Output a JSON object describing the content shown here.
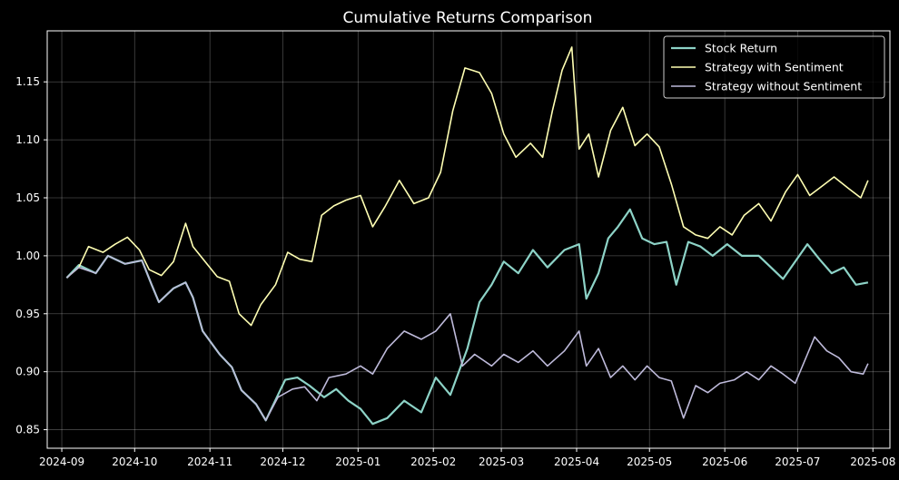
{
  "chart_data": {
    "type": "line",
    "title": "Cumulative Returns Comparison",
    "xlabel": "",
    "ylabel": "",
    "x_ticks": [
      "2024-09",
      "2024-10",
      "2024-11",
      "2024-12",
      "2025-01",
      "2025-02",
      "2025-03",
      "2025-04",
      "2025-05",
      "2025-06",
      "2025-07",
      "2025-08"
    ],
    "y_ticks": [
      "0.85",
      "0.90",
      "0.95",
      "1.00",
      "1.05",
      "1.10",
      "1.15"
    ],
    "xlim": [
      "2024-08-26",
      "2025-08-08"
    ],
    "ylim": [
      0.834,
      1.194
    ],
    "grid": true,
    "legend_position": "top-right",
    "background": "#000000",
    "series": [
      {
        "name": "Stock Return",
        "color": "#8dd3c7",
        "points": [
          [
            "2024-09-03",
            0.981
          ],
          [
            "2024-09-08",
            0.992
          ],
          [
            "2024-09-15",
            0.985
          ],
          [
            "2024-09-20",
            1.0
          ],
          [
            "2024-09-27",
            0.993
          ],
          [
            "2024-10-04",
            0.996
          ],
          [
            "2024-10-08",
            0.975
          ],
          [
            "2024-10-11",
            0.96
          ],
          [
            "2024-10-17",
            0.972
          ],
          [
            "2024-10-22",
            0.977
          ],
          [
            "2024-10-25",
            0.964
          ],
          [
            "2024-10-29",
            0.935
          ],
          [
            "2024-11-05",
            0.915
          ],
          [
            "2024-11-10",
            0.904
          ],
          [
            "2024-11-14",
            0.884
          ],
          [
            "2024-11-20",
            0.872
          ],
          [
            "2024-11-24",
            0.858
          ],
          [
            "2024-11-29",
            0.88
          ],
          [
            "2024-12-02",
            0.893
          ],
          [
            "2024-12-07",
            0.895
          ],
          [
            "2024-12-12",
            0.888
          ],
          [
            "2024-12-18",
            0.878
          ],
          [
            "2024-12-23",
            0.885
          ],
          [
            "2024-12-28",
            0.875
          ],
          [
            "2025-01-02",
            0.868
          ],
          [
            "2025-01-07",
            0.855
          ],
          [
            "2025-01-13",
            0.86
          ],
          [
            "2025-01-20",
            0.875
          ],
          [
            "2025-01-27",
            0.865
          ],
          [
            "2025-02-02",
            0.895
          ],
          [
            "2025-02-08",
            0.88
          ],
          [
            "2025-02-15",
            0.92
          ],
          [
            "2025-02-20",
            0.96
          ],
          [
            "2025-02-25",
            0.975
          ],
          [
            "2025-03-02",
            0.995
          ],
          [
            "2025-03-08",
            0.985
          ],
          [
            "2025-03-14",
            1.005
          ],
          [
            "2025-03-20",
            0.99
          ],
          [
            "2025-03-27",
            1.005
          ],
          [
            "2025-04-02",
            1.01
          ],
          [
            "2025-04-05",
            0.963
          ],
          [
            "2025-04-10",
            0.985
          ],
          [
            "2025-04-14",
            1.015
          ],
          [
            "2025-04-18",
            1.025
          ],
          [
            "2025-04-23",
            1.04
          ],
          [
            "2025-04-28",
            1.015
          ],
          [
            "2025-05-03",
            1.01
          ],
          [
            "2025-05-08",
            1.012
          ],
          [
            "2025-05-12",
            0.975
          ],
          [
            "2025-05-17",
            1.012
          ],
          [
            "2025-05-22",
            1.008
          ],
          [
            "2025-05-27",
            1.0
          ],
          [
            "2025-06-02",
            1.01
          ],
          [
            "2025-06-08",
            1.0
          ],
          [
            "2025-06-15",
            1.0
          ],
          [
            "2025-06-20",
            0.99
          ],
          [
            "2025-06-25",
            0.98
          ],
          [
            "2025-06-30",
            0.995
          ],
          [
            "2025-07-05",
            1.01
          ],
          [
            "2025-07-10",
            0.997
          ],
          [
            "2025-07-15",
            0.985
          ],
          [
            "2025-07-20",
            0.99
          ],
          [
            "2025-07-25",
            0.975
          ],
          [
            "2025-07-30",
            0.977
          ]
        ]
      },
      {
        "name": "Strategy with Sentiment",
        "color": "#ffffb3",
        "points": [
          [
            "2024-09-03",
            0.981
          ],
          [
            "2024-09-08",
            0.99
          ],
          [
            "2024-09-12",
            1.008
          ],
          [
            "2024-09-18",
            1.003
          ],
          [
            "2024-09-23",
            1.01
          ],
          [
            "2024-09-28",
            1.016
          ],
          [
            "2024-10-03",
            1.005
          ],
          [
            "2024-10-07",
            0.988
          ],
          [
            "2024-10-12",
            0.983
          ],
          [
            "2024-10-17",
            0.995
          ],
          [
            "2024-10-22",
            1.028
          ],
          [
            "2024-10-25",
            1.008
          ],
          [
            "2024-10-30",
            0.995
          ],
          [
            "2024-11-04",
            0.982
          ],
          [
            "2024-11-09",
            0.978
          ],
          [
            "2024-11-13",
            0.95
          ],
          [
            "2024-11-18",
            0.94
          ],
          [
            "2024-11-22",
            0.958
          ],
          [
            "2024-11-28",
            0.975
          ],
          [
            "2024-12-03",
            1.003
          ],
          [
            "2024-12-08",
            0.997
          ],
          [
            "2024-12-13",
            0.995
          ],
          [
            "2024-12-17",
            1.035
          ],
          [
            "2024-12-22",
            1.043
          ],
          [
            "2024-12-27",
            1.048
          ],
          [
            "2025-01-02",
            1.052
          ],
          [
            "2025-01-07",
            1.025
          ],
          [
            "2025-01-12",
            1.042
          ],
          [
            "2025-01-18",
            1.065
          ],
          [
            "2025-01-24",
            1.045
          ],
          [
            "2025-01-30",
            1.05
          ],
          [
            "2025-02-04",
            1.072
          ],
          [
            "2025-02-09",
            1.125
          ],
          [
            "2025-02-14",
            1.162
          ],
          [
            "2025-02-20",
            1.158
          ],
          [
            "2025-02-25",
            1.14
          ],
          [
            "2025-03-02",
            1.105
          ],
          [
            "2025-03-07",
            1.085
          ],
          [
            "2025-03-13",
            1.097
          ],
          [
            "2025-03-18",
            1.085
          ],
          [
            "2025-03-22",
            1.125
          ],
          [
            "2025-03-26",
            1.16
          ],
          [
            "2025-03-30",
            1.18
          ],
          [
            "2025-04-02",
            1.092
          ],
          [
            "2025-04-06",
            1.105
          ],
          [
            "2025-04-10",
            1.068
          ],
          [
            "2025-04-15",
            1.108
          ],
          [
            "2025-04-20",
            1.128
          ],
          [
            "2025-04-25",
            1.095
          ],
          [
            "2025-04-30",
            1.105
          ],
          [
            "2025-05-05",
            1.094
          ],
          [
            "2025-05-10",
            1.062
          ],
          [
            "2025-05-15",
            1.025
          ],
          [
            "2025-05-20",
            1.018
          ],
          [
            "2025-05-25",
            1.015
          ],
          [
            "2025-05-30",
            1.025
          ],
          [
            "2025-06-04",
            1.018
          ],
          [
            "2025-06-09",
            1.035
          ],
          [
            "2025-06-15",
            1.045
          ],
          [
            "2025-06-20",
            1.03
          ],
          [
            "2025-06-26",
            1.055
          ],
          [
            "2025-07-01",
            1.07
          ],
          [
            "2025-07-06",
            1.052
          ],
          [
            "2025-07-11",
            1.06
          ],
          [
            "2025-07-16",
            1.068
          ],
          [
            "2025-07-22",
            1.058
          ],
          [
            "2025-07-27",
            1.05
          ],
          [
            "2025-07-30",
            1.065
          ]
        ]
      },
      {
        "name": "Strategy without Sentiment",
        "color": "#bebada",
        "points": [
          [
            "2024-09-03",
            0.981
          ],
          [
            "2024-09-08",
            0.99
          ],
          [
            "2024-09-15",
            0.985
          ],
          [
            "2024-09-20",
            1.0
          ],
          [
            "2024-09-27",
            0.993
          ],
          [
            "2024-10-04",
            0.996
          ],
          [
            "2024-10-08",
            0.975
          ],
          [
            "2024-10-11",
            0.96
          ],
          [
            "2024-10-17",
            0.972
          ],
          [
            "2024-10-22",
            0.977
          ],
          [
            "2024-10-25",
            0.964
          ],
          [
            "2024-10-29",
            0.935
          ],
          [
            "2024-11-05",
            0.915
          ],
          [
            "2024-11-10",
            0.904
          ],
          [
            "2024-11-14",
            0.884
          ],
          [
            "2024-11-20",
            0.872
          ],
          [
            "2024-11-24",
            0.858
          ],
          [
            "2024-11-29",
            0.878
          ],
          [
            "2024-12-05",
            0.885
          ],
          [
            "2024-12-10",
            0.887
          ],
          [
            "2024-12-15",
            0.875
          ],
          [
            "2024-12-20",
            0.895
          ],
          [
            "2024-12-27",
            0.898
          ],
          [
            "2025-01-02",
            0.905
          ],
          [
            "2025-01-07",
            0.898
          ],
          [
            "2025-01-13",
            0.92
          ],
          [
            "2025-01-20",
            0.935
          ],
          [
            "2025-01-27",
            0.928
          ],
          [
            "2025-02-02",
            0.935
          ],
          [
            "2025-02-08",
            0.95
          ],
          [
            "2025-02-13",
            0.905
          ],
          [
            "2025-02-18",
            0.915
          ],
          [
            "2025-02-25",
            0.905
          ],
          [
            "2025-03-02",
            0.915
          ],
          [
            "2025-03-08",
            0.908
          ],
          [
            "2025-03-14",
            0.918
          ],
          [
            "2025-03-20",
            0.905
          ],
          [
            "2025-03-27",
            0.918
          ],
          [
            "2025-04-02",
            0.935
          ],
          [
            "2025-04-05",
            0.905
          ],
          [
            "2025-04-10",
            0.92
          ],
          [
            "2025-04-15",
            0.895
          ],
          [
            "2025-04-20",
            0.905
          ],
          [
            "2025-04-25",
            0.893
          ],
          [
            "2025-04-30",
            0.905
          ],
          [
            "2025-05-05",
            0.895
          ],
          [
            "2025-05-10",
            0.892
          ],
          [
            "2025-05-15",
            0.86
          ],
          [
            "2025-05-20",
            0.888
          ],
          [
            "2025-05-25",
            0.882
          ],
          [
            "2025-05-30",
            0.89
          ],
          [
            "2025-06-05",
            0.893
          ],
          [
            "2025-06-10",
            0.9
          ],
          [
            "2025-06-15",
            0.893
          ],
          [
            "2025-06-20",
            0.905
          ],
          [
            "2025-06-25",
            0.898
          ],
          [
            "2025-06-30",
            0.89
          ],
          [
            "2025-07-05",
            0.915
          ],
          [
            "2025-07-08",
            0.93
          ],
          [
            "2025-07-13",
            0.918
          ],
          [
            "2025-07-18",
            0.912
          ],
          [
            "2025-07-23",
            0.9
          ],
          [
            "2025-07-28",
            0.898
          ],
          [
            "2025-07-30",
            0.907
          ]
        ]
      }
    ]
  }
}
